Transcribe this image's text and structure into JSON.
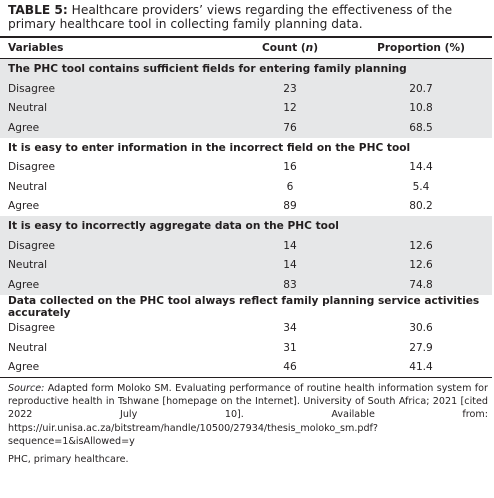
{
  "title": {
    "label": "TABLE 5:",
    "text": "Healthcare providers’ views regarding the effectiveness of the primary healthcare tool in collecting family planning data."
  },
  "table": {
    "header": [
      "Variables",
      {
        "before": "Count (",
        "italic": "n",
        "after": ")"
      },
      "Proportion (%)"
    ],
    "groups": [
      {
        "heading": "The PHC tool contains sufficient fields for entering family planning",
        "rows": [
          [
            "Disagree",
            "23",
            "20.7"
          ],
          [
            "Neutral",
            "12",
            "10.8"
          ],
          [
            "Agree",
            "76",
            "68.5"
          ]
        ]
      },
      {
        "heading": "It is easy to enter information in the incorrect field on the PHC tool",
        "rows": [
          [
            "Disagree",
            "16",
            "14.4"
          ],
          [
            "Neutral",
            "6",
            "5.4"
          ],
          [
            "Agree",
            "89",
            "80.2"
          ]
        ]
      },
      {
        "heading": "It is easy to incorrectly aggregate data on the PHC tool",
        "rows": [
          [
            "Disagree",
            "14",
            "12.6"
          ],
          [
            "Neutral",
            "14",
            "12.6"
          ],
          [
            "Agree",
            "83",
            "74.8"
          ]
        ]
      },
      {
        "heading": "Data collected on the PHC tool always reflect family planning service activities accurately",
        "rows": [
          [
            "Disagree",
            "34",
            "30.6"
          ],
          [
            "Neutral",
            "31",
            "27.9"
          ],
          [
            "Agree",
            "46",
            "41.4"
          ]
        ]
      }
    ]
  },
  "source": {
    "label": "Source:",
    "text": " Adapted form Moloko SM. Evaluating performance of routine health information system for reproductive health in Tshwane [homepage on the Internet]. University of South Africa; 2021 [cited 2022 July 10]. Available from: https://uir.unisa.ac.za/bitstream/handle/10500/27934/thesis_moloko_sm.pdf?sequence=1&isAllowed=y"
  },
  "footnote": "PHC, primary healthcare."
}
